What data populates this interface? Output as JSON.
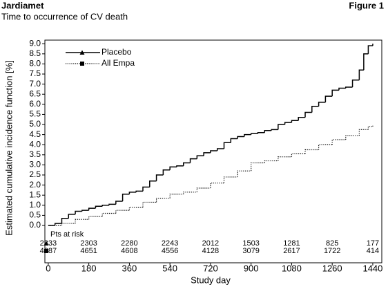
{
  "chart_data": {
    "type": "line",
    "title": "Jardiamet",
    "figure_label": "Figure 1",
    "subtitle": "Time to occurrence of CV death",
    "xlabel": "Study day",
    "ylabel": "Estimated cumulative incidence function [%]",
    "xlim": [
      -15,
      1480
    ],
    "ylim": [
      -1.85,
      9.18
    ],
    "xticks": [
      0,
      180,
      360,
      540,
      720,
      900,
      1080,
      1260,
      1440
    ],
    "yticks": [
      {
        "value": 0,
        "label": "0.0"
      },
      0.5,
      {
        "value": 1,
        "label": "1.0"
      },
      1.5,
      {
        "value": 2,
        "label": "2.0"
      },
      2.5,
      {
        "value": 3,
        "label": "3.0"
      },
      3.5,
      {
        "value": 4,
        "label": "4.0"
      },
      4.5,
      {
        "value": 5,
        "label": "5.0"
      },
      5.5,
      {
        "value": 6,
        "label": "6.0"
      },
      6.5,
      {
        "value": 7,
        "label": "7.0"
      },
      7.5,
      {
        "value": 8,
        "label": "8.0"
      },
      8.5,
      {
        "value": 9,
        "label": "9.0"
      }
    ],
    "series": [
      {
        "name": "Placebo",
        "color": "#000000",
        "dash": "solid",
        "marker": "triangle",
        "x": [
          0,
          30,
          60,
          90,
          120,
          150,
          180,
          210,
          240,
          270,
          300,
          330,
          360,
          390,
          420,
          450,
          480,
          510,
          540,
          570,
          600,
          630,
          660,
          690,
          720,
          750,
          780,
          810,
          840,
          870,
          900,
          930,
          960,
          990,
          1020,
          1050,
          1080,
          1110,
          1140,
          1170,
          1200,
          1230,
          1260,
          1290,
          1320,
          1350,
          1380,
          1400,
          1420,
          1440
        ],
        "values": [
          0,
          0.1,
          0.35,
          0.55,
          0.7,
          0.75,
          0.85,
          0.95,
          1.0,
          1.05,
          1.2,
          1.55,
          1.65,
          1.7,
          1.9,
          2.2,
          2.5,
          2.75,
          2.9,
          2.95,
          3.1,
          3.3,
          3.45,
          3.6,
          3.7,
          3.8,
          4.1,
          4.3,
          4.4,
          4.5,
          4.55,
          4.6,
          4.7,
          4.75,
          5.0,
          5.1,
          5.2,
          5.35,
          5.6,
          5.9,
          6.1,
          6.4,
          6.7,
          6.8,
          6.85,
          7.2,
          7.7,
          8.5,
          8.9,
          9.0
        ]
      },
      {
        "name": "All Empa",
        "color": "#000000",
        "dash": "dotted",
        "marker": "square",
        "x": [
          0,
          60,
          120,
          180,
          240,
          300,
          360,
          420,
          480,
          540,
          600,
          660,
          720,
          780,
          840,
          900,
          960,
          1020,
          1080,
          1140,
          1200,
          1260,
          1320,
          1380,
          1420,
          1440
        ],
        "values": [
          0,
          0.1,
          0.3,
          0.45,
          0.6,
          0.75,
          0.9,
          1.15,
          1.35,
          1.55,
          1.65,
          1.85,
          2.1,
          2.4,
          2.7,
          3.1,
          3.2,
          3.4,
          3.55,
          3.75,
          4.0,
          4.25,
          4.45,
          4.75,
          4.9,
          4.95
        ]
      }
    ],
    "at_risk": {
      "label": "Pts at risk",
      "x": [
        0,
        180,
        360,
        540,
        720,
        900,
        1080,
        1260,
        1440
      ],
      "counts": [
        [
          "2333",
          "2303",
          "2280",
          "2243",
          "2012",
          "1503",
          "1281",
          "825",
          "177"
        ],
        [
          "4687",
          "4651",
          "4608",
          "4556",
          "4128",
          "3079",
          "2617",
          "1722",
          "414"
        ]
      ]
    }
  }
}
